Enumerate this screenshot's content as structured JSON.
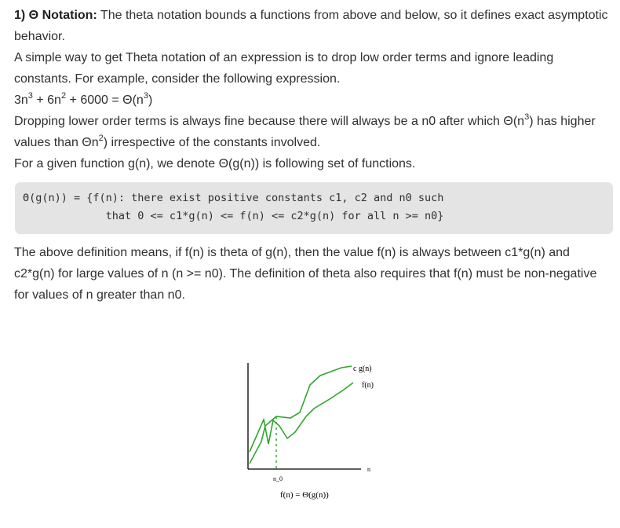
{
  "section": {
    "number_title": "1) Θ Notation:",
    "intro_rest": " The theta notation bounds a functions from above and below, so it defines exact asymptotic behavior.",
    "p2": "A simple way to get Theta notation of an expression is to drop low order terms and ignore leading constants. For example, consider the following expression.",
    "expr": {
      "a": "3n",
      "a_exp": "3",
      "b": " + 6n",
      "b_exp": "2",
      "c": " + 6000 = Θ(n",
      "c_exp": "3",
      "c_end": ")"
    },
    "p4": {
      "a": "Dropping lower order terms is always fine because there will always be a n0 after which Θ(n",
      "a_exp": "3",
      "b": ") has higher values than Θn",
      "b_exp": "2",
      "c": ") irrespective of the constants involved."
    },
    "p5": "For a given function g(n), we denote Θ(g(n)) is following set of functions.",
    "code_line1": "Θ(g(n)) = {f(n): there exist positive constants c1, c2 and n0 such",
    "code_line2": "             that 0 <= c1*g(n) <= f(n) <= c2*g(n) for all n >= n0}",
    "p6": "The above definition means, if f(n) is theta of g(n), then the value f(n) is always between c1*g(n) and c2*g(n) for large values of n (n >= n0). The definition of theta also requires that f(n) must be non-negative for values of n greater than n0."
  },
  "figure": {
    "label_cg": "c g(n)",
    "label_f": "f(n)",
    "label_n": "n",
    "label_n0": "n_0",
    "caption": "f(n) = Θ(g(n))",
    "line_color": "#2fa62f",
    "axis_color": "#000000"
  }
}
